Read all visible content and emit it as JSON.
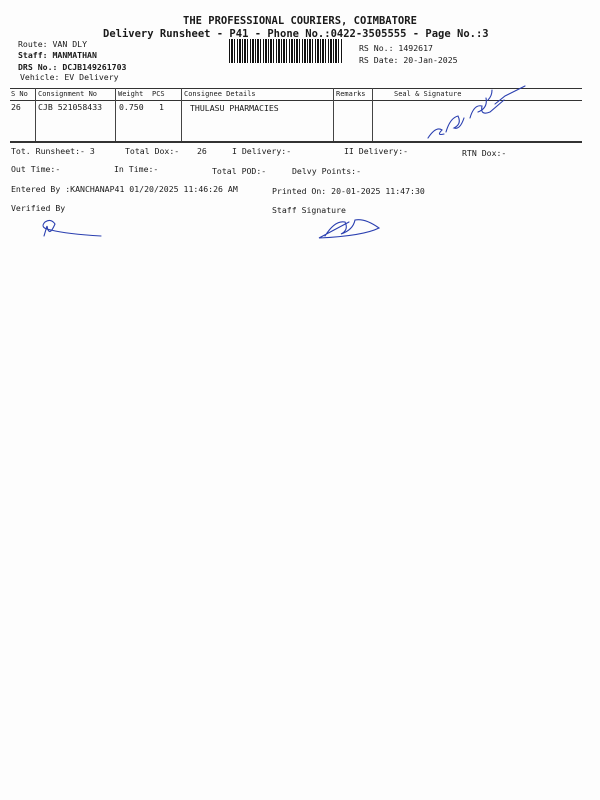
{
  "header": {
    "company": "THE PROFESSIONAL COURIERS, COIMBATORE",
    "subtitle": "Delivery Runsheet - P41 - Phone No.:0422-3505555 - Page No.:3",
    "route": "Route: VAN DLY",
    "staff": "Staff: MANMATHAN",
    "drs_no": "DRS No.: DCJB149261703",
    "vehicle": "Vehicle: EV Delivery",
    "rs_no": "RS No.: 1492617",
    "rs_date": "RS Date: 20-Jan-2025"
  },
  "table": {
    "headers": [
      "S No",
      "Consignment No",
      "Weight",
      "PCS",
      "Consignee Details",
      "Remarks",
      "Seal & Signature"
    ],
    "rows": [
      {
        "sno": "26",
        "consignment": "CJB 521058433",
        "weight": "0.750",
        "pcs": "1",
        "consignee": "THULASU PHARMACIES",
        "remarks": "",
        "seal": ""
      }
    ]
  },
  "summary": {
    "tot_runsheet": "Tot. Runsheet:- 3",
    "total_dox": "Total Dox:-",
    "total_dox_value": "26",
    "i_delivery": "I Delivery:-",
    "ii_delivery": "II Delivery:-",
    "rtn_dox": "RTN Dox:-",
    "out_time": "Out Time:-",
    "in_time": "In Time:-",
    "total_pod": "Total POD:-",
    "delvy_points": "Delvy Points:-",
    "entered_by": "Entered By :KANCHANAP41 01/20/2025 11:46:26 AM",
    "printed_on": "Printed On: 20-01-2025 11:47:30",
    "verified_by": "Verified By",
    "staff_signature": "Staff Signature"
  },
  "colors": {
    "ink": "#1a1a1a",
    "signature": "#2a3fb0"
  }
}
